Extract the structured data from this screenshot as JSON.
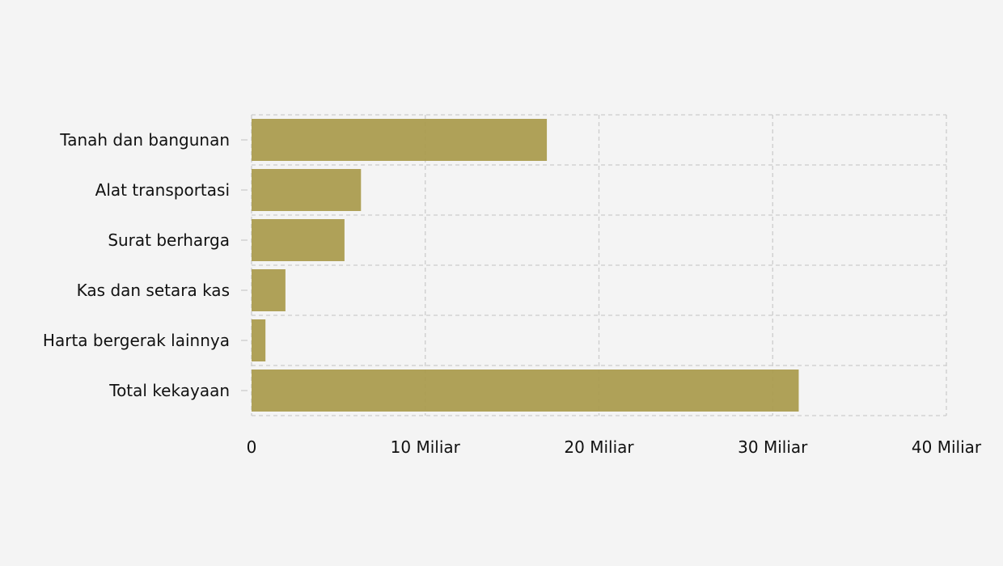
{
  "chart_data": {
    "type": "bar",
    "orientation": "horizontal",
    "categories": [
      "Tanah dan bangunan",
      "Alat transportasi",
      "Surat berharga",
      "Kas dan setara kas",
      "Harta bergerak lainnya",
      "Total kekayaan"
    ],
    "values": [
      17000000000,
      6300000000,
      5350000000,
      1950000000,
      800000000,
      31500000000
    ],
    "xlim": [
      0,
      40000000000
    ],
    "x_ticks": [
      {
        "value": 0,
        "label": "0"
      },
      {
        "value": 10000000000,
        "label": "10 Miliar"
      },
      {
        "value": 20000000000,
        "label": "20 Miliar"
      },
      {
        "value": 30000000000,
        "label": "30 Miliar"
      },
      {
        "value": 40000000000,
        "label": "40 Miliar"
      }
    ],
    "title": "",
    "xlabel": "",
    "ylabel": "",
    "grid": true,
    "grid_style": "dashed",
    "bar_color": "#ab9c4f",
    "grid_color": "#cccccc",
    "background": "#f4f4f4"
  }
}
